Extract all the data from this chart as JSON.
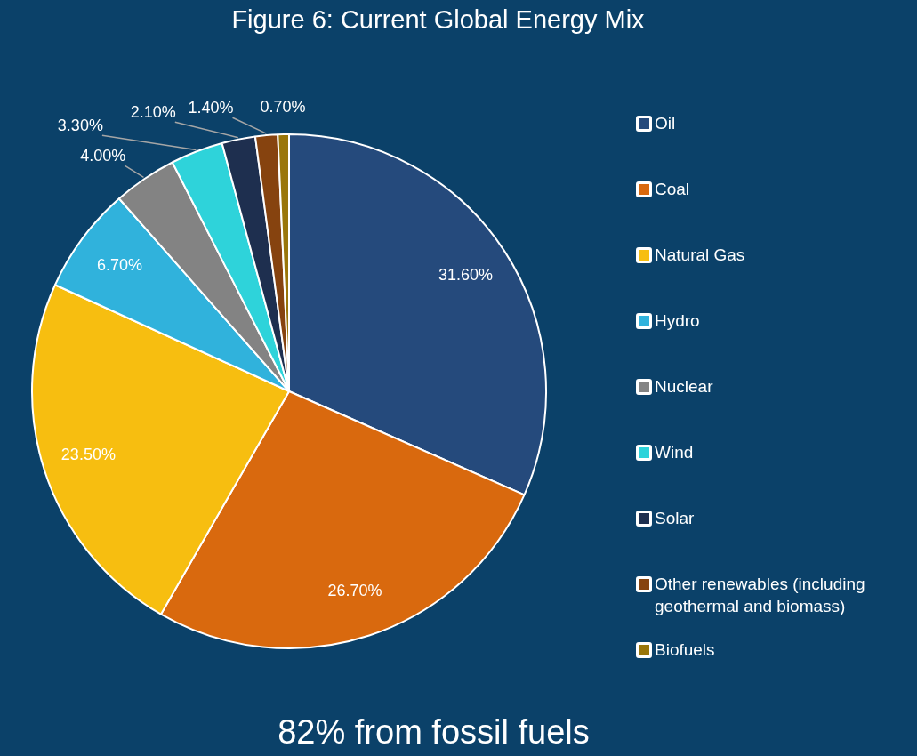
{
  "chart_data": {
    "type": "pie",
    "title": "Figure 6: Current Global Energy Mix",
    "categories": [
      "Oil",
      "Coal",
      "Natural Gas",
      "Hydro",
      "Nuclear",
      "Wind",
      "Solar",
      "Other renewables (including geothermal and biomass)",
      "Biofuels"
    ],
    "values": [
      31.6,
      26.7,
      23.5,
      6.7,
      4.0,
      3.3,
      2.1,
      1.4,
      0.7
    ],
    "value_labels": [
      "31.60%",
      "26.70%",
      "23.50%",
      "6.70%",
      "4.00%",
      "3.30%",
      "2.10%",
      "1.40%",
      "0.70%"
    ],
    "colors": [
      "#254a7c",
      "#d9690e",
      "#f7be10",
      "#30b2dc",
      "#838383",
      "#2ed3da",
      "#1e2f4f",
      "#86430f",
      "#9a760a"
    ],
    "legend": "right",
    "annotations": [
      "82% from fossil fuels"
    ]
  }
}
